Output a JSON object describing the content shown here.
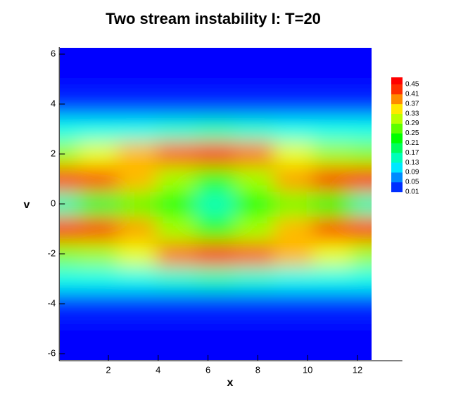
{
  "chart_data": {
    "type": "contour",
    "title": "Two stream instability I: T=20",
    "x_label": "x",
    "y_label": "v",
    "xlim": [
      0,
      13.8
    ],
    "ylim": [
      -6.28,
      6.28
    ],
    "xticks": [
      2,
      4,
      6,
      8,
      10,
      12
    ],
    "yticks": [
      -6,
      -4,
      -2,
      0,
      2,
      4,
      6
    ],
    "x": [
      0,
      1.57,
      3.14,
      4.71,
      6.28,
      7.85,
      9.42,
      11.0,
      12.57
    ],
    "y": [
      -6,
      -5,
      -4,
      -3,
      -2,
      -1,
      0,
      1,
      2,
      3,
      4,
      5,
      6
    ],
    "z": [
      [
        0.01,
        0.01,
        0.01,
        0.01,
        0.01,
        0.01,
        0.01,
        0.01,
        0.01
      ],
      [
        0.01,
        0.01,
        0.01,
        0.01,
        0.01,
        0.01,
        0.01,
        0.01,
        0.01
      ],
      [
        0.03,
        0.03,
        0.03,
        0.03,
        0.03,
        0.03,
        0.03,
        0.03,
        0.03
      ],
      [
        0.13,
        0.13,
        0.13,
        0.14,
        0.15,
        0.14,
        0.13,
        0.13,
        0.13
      ],
      [
        0.29,
        0.3,
        0.33,
        0.4,
        0.43,
        0.41,
        0.37,
        0.33,
        0.3
      ],
      [
        0.44,
        0.43,
        0.38,
        0.3,
        0.25,
        0.3,
        0.37,
        0.42,
        0.43
      ],
      [
        0.15,
        0.2,
        0.27,
        0.22,
        0.15,
        0.22,
        0.28,
        0.22,
        0.15
      ],
      [
        0.43,
        0.42,
        0.37,
        0.3,
        0.25,
        0.3,
        0.38,
        0.43,
        0.44
      ],
      [
        0.3,
        0.33,
        0.37,
        0.41,
        0.43,
        0.4,
        0.33,
        0.3,
        0.29
      ],
      [
        0.13,
        0.13,
        0.13,
        0.14,
        0.15,
        0.14,
        0.13,
        0.13,
        0.13
      ],
      [
        0.03,
        0.03,
        0.03,
        0.03,
        0.03,
        0.03,
        0.03,
        0.03,
        0.03
      ],
      [
        0.01,
        0.01,
        0.01,
        0.01,
        0.01,
        0.01,
        0.01,
        0.01,
        0.01
      ],
      [
        0.01,
        0.01,
        0.01,
        0.01,
        0.01,
        0.01,
        0.01,
        0.01,
        0.01
      ]
    ],
    "levels": [
      0.01,
      0.05,
      0.09,
      0.13,
      0.17,
      0.21,
      0.25,
      0.29,
      0.33,
      0.37,
      0.41,
      0.45
    ],
    "colorscale": [
      "#0000ff",
      "#00ffff",
      "#00ff00",
      "#ffff00",
      "#ff0000"
    ]
  }
}
